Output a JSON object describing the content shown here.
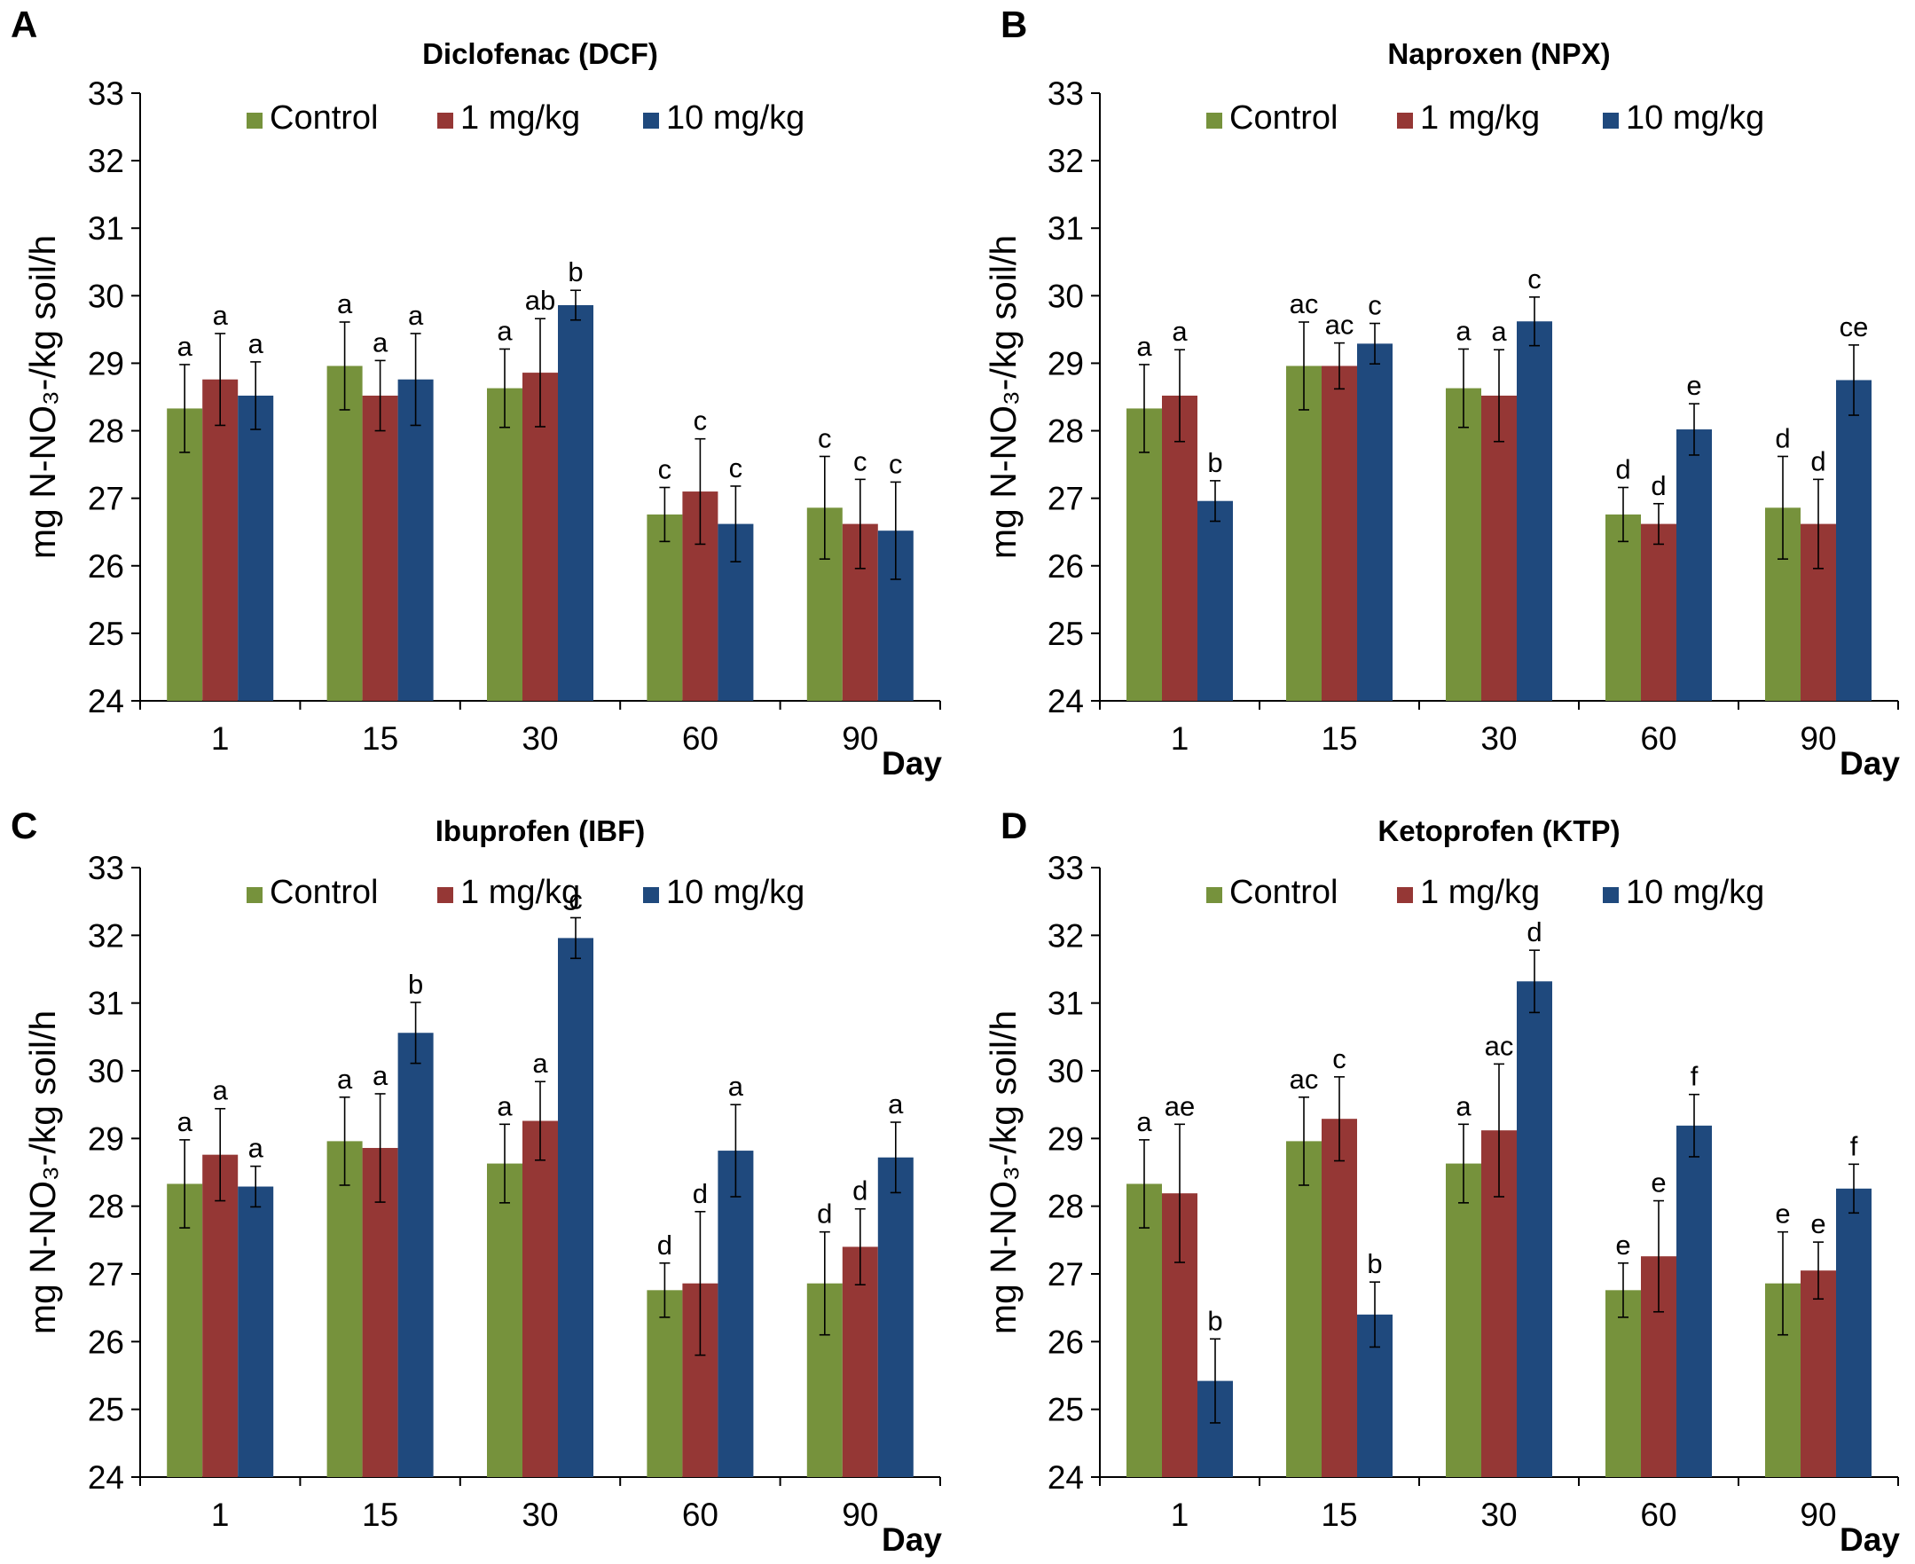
{
  "colors": {
    "Control": "#76923c",
    "1 mg/kg": "#953735",
    "10 mg/kg": "#1f497d"
  },
  "chart_data": [
    {
      "type": "bar",
      "panel": "A",
      "title": "Diclofenac (DCF)",
      "categories": [
        "1",
        "15",
        "30",
        "60",
        "90"
      ],
      "xlabel": "Day",
      "ylabel": "mg N-NO₃-/kg soil/h",
      "ylim": [
        24,
        33
      ],
      "yticks": [
        "24",
        "25",
        "26",
        "27",
        "28",
        "29",
        "30",
        "31",
        "32",
        "33"
      ],
      "legend": "top",
      "series": [
        {
          "name": "Control",
          "values": [
            28.33,
            28.96,
            28.63,
            26.76,
            26.86
          ],
          "errors": [
            0.65,
            0.65,
            0.58,
            0.4,
            0.76
          ],
          "labels": [
            "a",
            "a",
            "a",
            "c",
            "c"
          ]
        },
        {
          "name": "1 mg/kg",
          "values": [
            28.76,
            28.52,
            28.86,
            27.1,
            26.62
          ],
          "errors": [
            0.68,
            0.52,
            0.8,
            0.78,
            0.66
          ],
          "labels": [
            "a",
            "a",
            "ab",
            "c",
            "c"
          ]
        },
        {
          "name": "10 mg/kg",
          "values": [
            28.52,
            28.76,
            29.86,
            26.62,
            26.52
          ],
          "errors": [
            0.5,
            0.68,
            0.22,
            0.56,
            0.72
          ],
          "labels": [
            "a",
            "a",
            "b",
            "c",
            "c"
          ]
        }
      ]
    },
    {
      "type": "bar",
      "panel": "B",
      "title": "Naproxen (NPX)",
      "categories": [
        "1",
        "15",
        "30",
        "60",
        "90"
      ],
      "xlabel": "Day",
      "ylabel": "mg N-NO₃-/kg soil/h",
      "ylim": [
        24,
        33
      ],
      "yticks": [
        "24",
        "25",
        "26",
        "27",
        "28",
        "29",
        "30",
        "31",
        "32",
        "33"
      ],
      "legend": "top",
      "series": [
        {
          "name": "Control",
          "values": [
            28.33,
            28.96,
            28.63,
            26.76,
            26.86
          ],
          "errors": [
            0.65,
            0.65,
            0.58,
            0.4,
            0.76
          ],
          "labels": [
            "a",
            "ac",
            "a",
            "d",
            "d"
          ]
        },
        {
          "name": "1 mg/kg",
          "values": [
            28.52,
            28.96,
            28.52,
            26.62,
            26.62
          ],
          "errors": [
            0.68,
            0.34,
            0.68,
            0.3,
            0.66
          ],
          "labels": [
            "a",
            "ac",
            "a",
            "d",
            "d"
          ]
        },
        {
          "name": "10 mg/kg",
          "values": [
            26.96,
            29.29,
            29.62,
            28.02,
            28.75
          ],
          "errors": [
            0.3,
            0.3,
            0.36,
            0.38,
            0.52
          ],
          "labels": [
            "b",
            "c",
            "c",
            "e",
            "ce"
          ]
        }
      ]
    },
    {
      "type": "bar",
      "panel": "C",
      "title": "Ibuprofen (IBF)",
      "categories": [
        "1",
        "15",
        "30",
        "60",
        "90"
      ],
      "xlabel": "Day",
      "ylabel": "mg N-NO₃-/kg soil/h",
      "ylim": [
        24,
        33
      ],
      "yticks": [
        "24",
        "25",
        "26",
        "27",
        "28",
        "29",
        "30",
        "31",
        "32",
        "33"
      ],
      "legend": "top",
      "series": [
        {
          "name": "Control",
          "values": [
            28.33,
            28.96,
            28.63,
            26.76,
            26.86
          ],
          "errors": [
            0.65,
            0.65,
            0.58,
            0.4,
            0.76
          ],
          "labels": [
            "a",
            "a",
            "a",
            "d",
            "d"
          ]
        },
        {
          "name": "1 mg/kg",
          "values": [
            28.76,
            28.86,
            29.26,
            26.86,
            27.4
          ],
          "errors": [
            0.68,
            0.8,
            0.58,
            1.06,
            0.56
          ],
          "labels": [
            "a",
            "a",
            "a",
            "d",
            "d"
          ]
        },
        {
          "name": "10 mg/kg",
          "values": [
            28.29,
            30.56,
            31.96,
            28.82,
            28.72
          ],
          "errors": [
            0.3,
            0.45,
            0.3,
            0.68,
            0.52
          ],
          "labels": [
            "a",
            "b",
            "c",
            "a",
            "a"
          ]
        }
      ]
    },
    {
      "type": "bar",
      "panel": "D",
      "title": "Ketoprofen (KTP)",
      "categories": [
        "1",
        "15",
        "30",
        "60",
        "90"
      ],
      "xlabel": "Day",
      "ylabel": "mg N-NO₃-/kg soil/h",
      "ylim": [
        24,
        33
      ],
      "yticks": [
        "24",
        "25",
        "26",
        "27",
        "28",
        "29",
        "30",
        "31",
        "32",
        "33"
      ],
      "legend": "top",
      "series": [
        {
          "name": "Control",
          "values": [
            28.33,
            28.96,
            28.63,
            26.76,
            26.86
          ],
          "errors": [
            0.65,
            0.65,
            0.58,
            0.4,
            0.76
          ],
          "labels": [
            "a",
            "ac",
            "a",
            "e",
            "e"
          ]
        },
        {
          "name": "1 mg/kg",
          "values": [
            28.19,
            29.29,
            29.12,
            27.26,
            27.05
          ],
          "errors": [
            1.02,
            0.62,
            0.98,
            0.82,
            0.42
          ],
          "labels": [
            "ae",
            "c",
            "ac",
            "e",
            "e"
          ]
        },
        {
          "name": "10 mg/kg",
          "values": [
            25.42,
            26.4,
            31.32,
            29.19,
            28.26
          ],
          "errors": [
            0.62,
            0.48,
            0.46,
            0.46,
            0.36
          ],
          "labels": [
            "b",
            "b",
            "d",
            "f",
            "f"
          ]
        }
      ]
    }
  ]
}
